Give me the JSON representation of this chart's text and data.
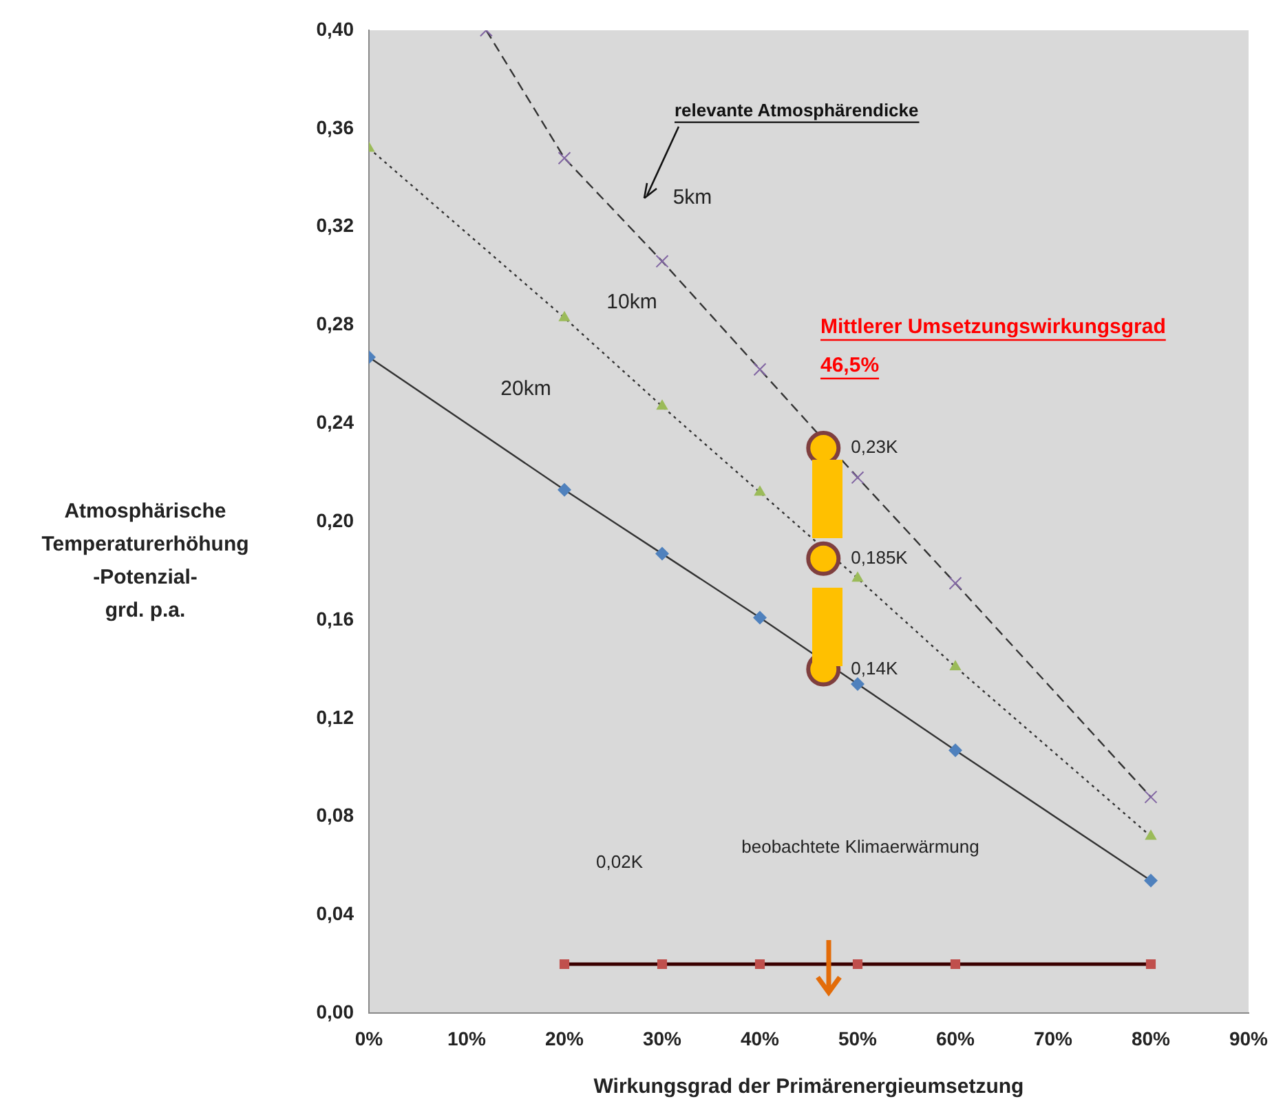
{
  "chart_data": {
    "type": "line",
    "xlabel": "Wirkungsgrad der Primärenergieumsetzung",
    "ylabel": "Atmosphärische\nTemperaturerhöhung\n-Potenzial-\ngrd. p.a.",
    "xlim": [
      0,
      90
    ],
    "xticks": [
      {
        "value": 0,
        "label": "0%"
      },
      {
        "value": 10,
        "label": "10%"
      },
      {
        "value": 20,
        "label": "20%"
      },
      {
        "value": 30,
        "label": "30%"
      },
      {
        "value": 40,
        "label": "40%"
      },
      {
        "value": 50,
        "label": "50%"
      },
      {
        "value": 60,
        "label": "60%"
      },
      {
        "value": 70,
        "label": "70%"
      },
      {
        "value": 80,
        "label": "80%"
      },
      {
        "value": 90,
        "label": "90%"
      }
    ],
    "ylim": [
      0,
      0.4
    ],
    "yticks": [
      {
        "value": 0,
        "label": "0,00"
      },
      {
        "value": 0.04,
        "label": "0,04"
      },
      {
        "value": 0.08,
        "label": "0,08"
      },
      {
        "value": 0.12,
        "label": "0,12"
      },
      {
        "value": 0.16,
        "label": "0,16"
      },
      {
        "value": 0.2,
        "label": "0,20"
      },
      {
        "value": 0.24,
        "label": "0,24"
      },
      {
        "value": 0.28,
        "label": "0,28"
      },
      {
        "value": 0.32,
        "label": "0,32"
      },
      {
        "value": 0.36,
        "label": "0,36"
      },
      {
        "value": 0.4,
        "label": "0,40"
      }
    ],
    "grid": false,
    "legend": false,
    "series": [
      {
        "color": "#4f81bd",
        "marker": "diamond",
        "line_style": "solid",
        "x": [
          0,
          20,
          30,
          40,
          50,
          60,
          80
        ],
        "values": [
          0.267,
          0.213,
          0.187,
          0.161,
          0.134,
          0.107,
          0.054
        ]
      },
      {
        "color": "#9bbb59",
        "marker": "triangle",
        "line_style": "dotted",
        "x": [
          0,
          20,
          30,
          40,
          50,
          60,
          80
        ],
        "values": [
          0.352,
          0.283,
          0.247,
          0.212,
          0.177,
          0.141,
          0.072
        ]
      },
      {
        "color": "#8064a2",
        "marker": "cross",
        "line_style": "dashed",
        "x": [
          12,
          20,
          30,
          40,
          50,
          60,
          80
        ],
        "values": [
          0.4,
          0.348,
          0.306,
          0.262,
          0.218,
          0.175,
          0.088
        ]
      },
      {
        "color": "#c0504d",
        "marker": "square",
        "line_style": "solid",
        "x": [
          20,
          30,
          40,
          50,
          60,
          80
        ],
        "values": [
          0.02,
          0.02,
          0.02,
          0.02,
          0.02,
          0.02
        ]
      },
      {
        "type": "scatter",
        "color": "#ffc000",
        "marker": "circle",
        "x": [
          46.5,
          46.5,
          46.5
        ],
        "values": [
          0.23,
          0.185,
          0.14
        ],
        "value_labels": [
          "0,23K",
          "0,185K",
          "0,14K"
        ]
      }
    ],
    "annotations": [
      "relevante Atmosphärendicke",
      "5km",
      "10km",
      "20km",
      "Mittlerer Umsetzungswirkungsgrad",
      "46,5%",
      "0,02K",
      "beobachtete Klimaerwärmung"
    ]
  }
}
